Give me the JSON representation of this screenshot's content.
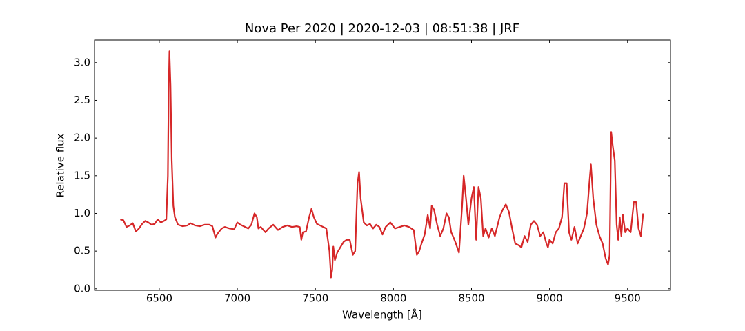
{
  "chart_data": {
    "type": "line",
    "title": "Nova Per 2020 | 2020-12-03 | 08:51:38 | JRF",
    "x_label": "Wavelength [Å]",
    "y_label": "Relative flux",
    "color": "#d62728",
    "xlim": [
      6085,
      9775
    ],
    "ylim": [
      -0.02,
      3.3
    ],
    "xticks": [
      6500,
      7000,
      7500,
      8000,
      8500,
      9000,
      9500
    ],
    "yticks": [
      {
        "value": 0,
        "label": "0.0"
      },
      0.5,
      {
        "value": 1,
        "label": "1.0"
      },
      1.5,
      {
        "value": 2,
        "label": "2.0"
      },
      2.5,
      {
        "value": 3,
        "label": "3.0"
      }
    ],
    "x": [
      6250,
      6270,
      6290,
      6310,
      6330,
      6350,
      6370,
      6390,
      6410,
      6430,
      6450,
      6470,
      6490,
      6510,
      6530,
      6545,
      6555,
      6560,
      6565,
      6572,
      6580,
      6590,
      6600,
      6620,
      6650,
      6680,
      6700,
      6730,
      6760,
      6790,
      6820,
      6840,
      6860,
      6870,
      6880,
      6900,
      6920,
      6950,
      6980,
      7000,
      7020,
      7050,
      7070,
      7090,
      7110,
      7125,
      7135,
      7150,
      7180,
      7200,
      7230,
      7260,
      7290,
      7320,
      7350,
      7380,
      7400,
      7410,
      7420,
      7440,
      7460,
      7475,
      7490,
      7510,
      7540,
      7570,
      7590,
      7600,
      7608,
      7615,
      7625,
      7640,
      7660,
      7680,
      7700,
      7720,
      7740,
      7755,
      7770,
      7780,
      7790,
      7810,
      7830,
      7850,
      7870,
      7890,
      7910,
      7930,
      7950,
      7980,
      8010,
      8040,
      8070,
      8100,
      8130,
      8150,
      8165,
      8180,
      8200,
      8220,
      8235,
      8245,
      8260,
      8280,
      8300,
      8320,
      8340,
      8355,
      8370,
      8385,
      8400,
      8420,
      8440,
      8450,
      8465,
      8480,
      8500,
      8515,
      8530,
      8545,
      8560,
      8575,
      8590,
      8610,
      8630,
      8650,
      8680,
      8700,
      8720,
      8740,
      8760,
      8780,
      8800,
      8820,
      8840,
      8860,
      8880,
      8900,
      8920,
      8940,
      8960,
      8980,
      8990,
      9000,
      9020,
      9040,
      9060,
      9080,
      9095,
      9110,
      9125,
      9140,
      9160,
      9180,
      9200,
      9220,
      9240,
      9255,
      9265,
      9280,
      9300,
      9320,
      9340,
      9360,
      9375,
      9385,
      9395,
      9405,
      9418,
      9430,
      9440,
      9450,
      9460,
      9470,
      9485,
      9500,
      9520,
      9540,
      9555,
      9570,
      9585,
      9600
    ],
    "values": [
      0.92,
      0.91,
      0.82,
      0.84,
      0.87,
      0.76,
      0.8,
      0.86,
      0.9,
      0.88,
      0.85,
      0.86,
      0.92,
      0.88,
      0.9,
      0.92,
      1.5,
      2.6,
      3.15,
      2.7,
      1.7,
      1.1,
      0.95,
      0.85,
      0.83,
      0.84,
      0.87,
      0.84,
      0.83,
      0.85,
      0.85,
      0.83,
      0.68,
      0.72,
      0.75,
      0.8,
      0.82,
      0.8,
      0.79,
      0.88,
      0.85,
      0.82,
      0.8,
      0.85,
      1.0,
      0.95,
      0.8,
      0.82,
      0.75,
      0.8,
      0.85,
      0.78,
      0.82,
      0.84,
      0.82,
      0.83,
      0.82,
      0.65,
      0.75,
      0.76,
      0.95,
      1.06,
      0.95,
      0.86,
      0.83,
      0.8,
      0.5,
      0.15,
      0.25,
      0.56,
      0.38,
      0.48,
      0.55,
      0.62,
      0.65,
      0.65,
      0.45,
      0.5,
      1.4,
      1.55,
      1.2,
      0.88,
      0.84,
      0.86,
      0.8,
      0.85,
      0.82,
      0.72,
      0.82,
      0.88,
      0.8,
      0.82,
      0.84,
      0.82,
      0.78,
      0.45,
      0.5,
      0.6,
      0.72,
      0.98,
      0.8,
      1.1,
      1.05,
      0.85,
      0.7,
      0.8,
      1.0,
      0.95,
      0.75,
      0.68,
      0.6,
      0.48,
      1.1,
      1.5,
      1.2,
      0.85,
      1.2,
      1.35,
      0.65,
      1.35,
      1.2,
      0.7,
      0.8,
      0.68,
      0.8,
      0.7,
      0.95,
      1.05,
      1.12,
      1.02,
      0.8,
      0.6,
      0.58,
      0.55,
      0.7,
      0.62,
      0.85,
      0.9,
      0.85,
      0.7,
      0.75,
      0.6,
      0.55,
      0.65,
      0.6,
      0.75,
      0.8,
      0.95,
      1.4,
      1.4,
      0.75,
      0.65,
      0.82,
      0.6,
      0.7,
      0.8,
      1.0,
      1.4,
      1.65,
      1.2,
      0.85,
      0.7,
      0.6,
      0.4,
      0.32,
      0.45,
      2.08,
      1.9,
      1.7,
      0.85,
      0.65,
      0.95,
      0.7,
      0.98,
      0.75,
      0.8,
      0.75,
      1.15,
      1.15,
      0.8,
      0.7,
      1.0
    ]
  }
}
